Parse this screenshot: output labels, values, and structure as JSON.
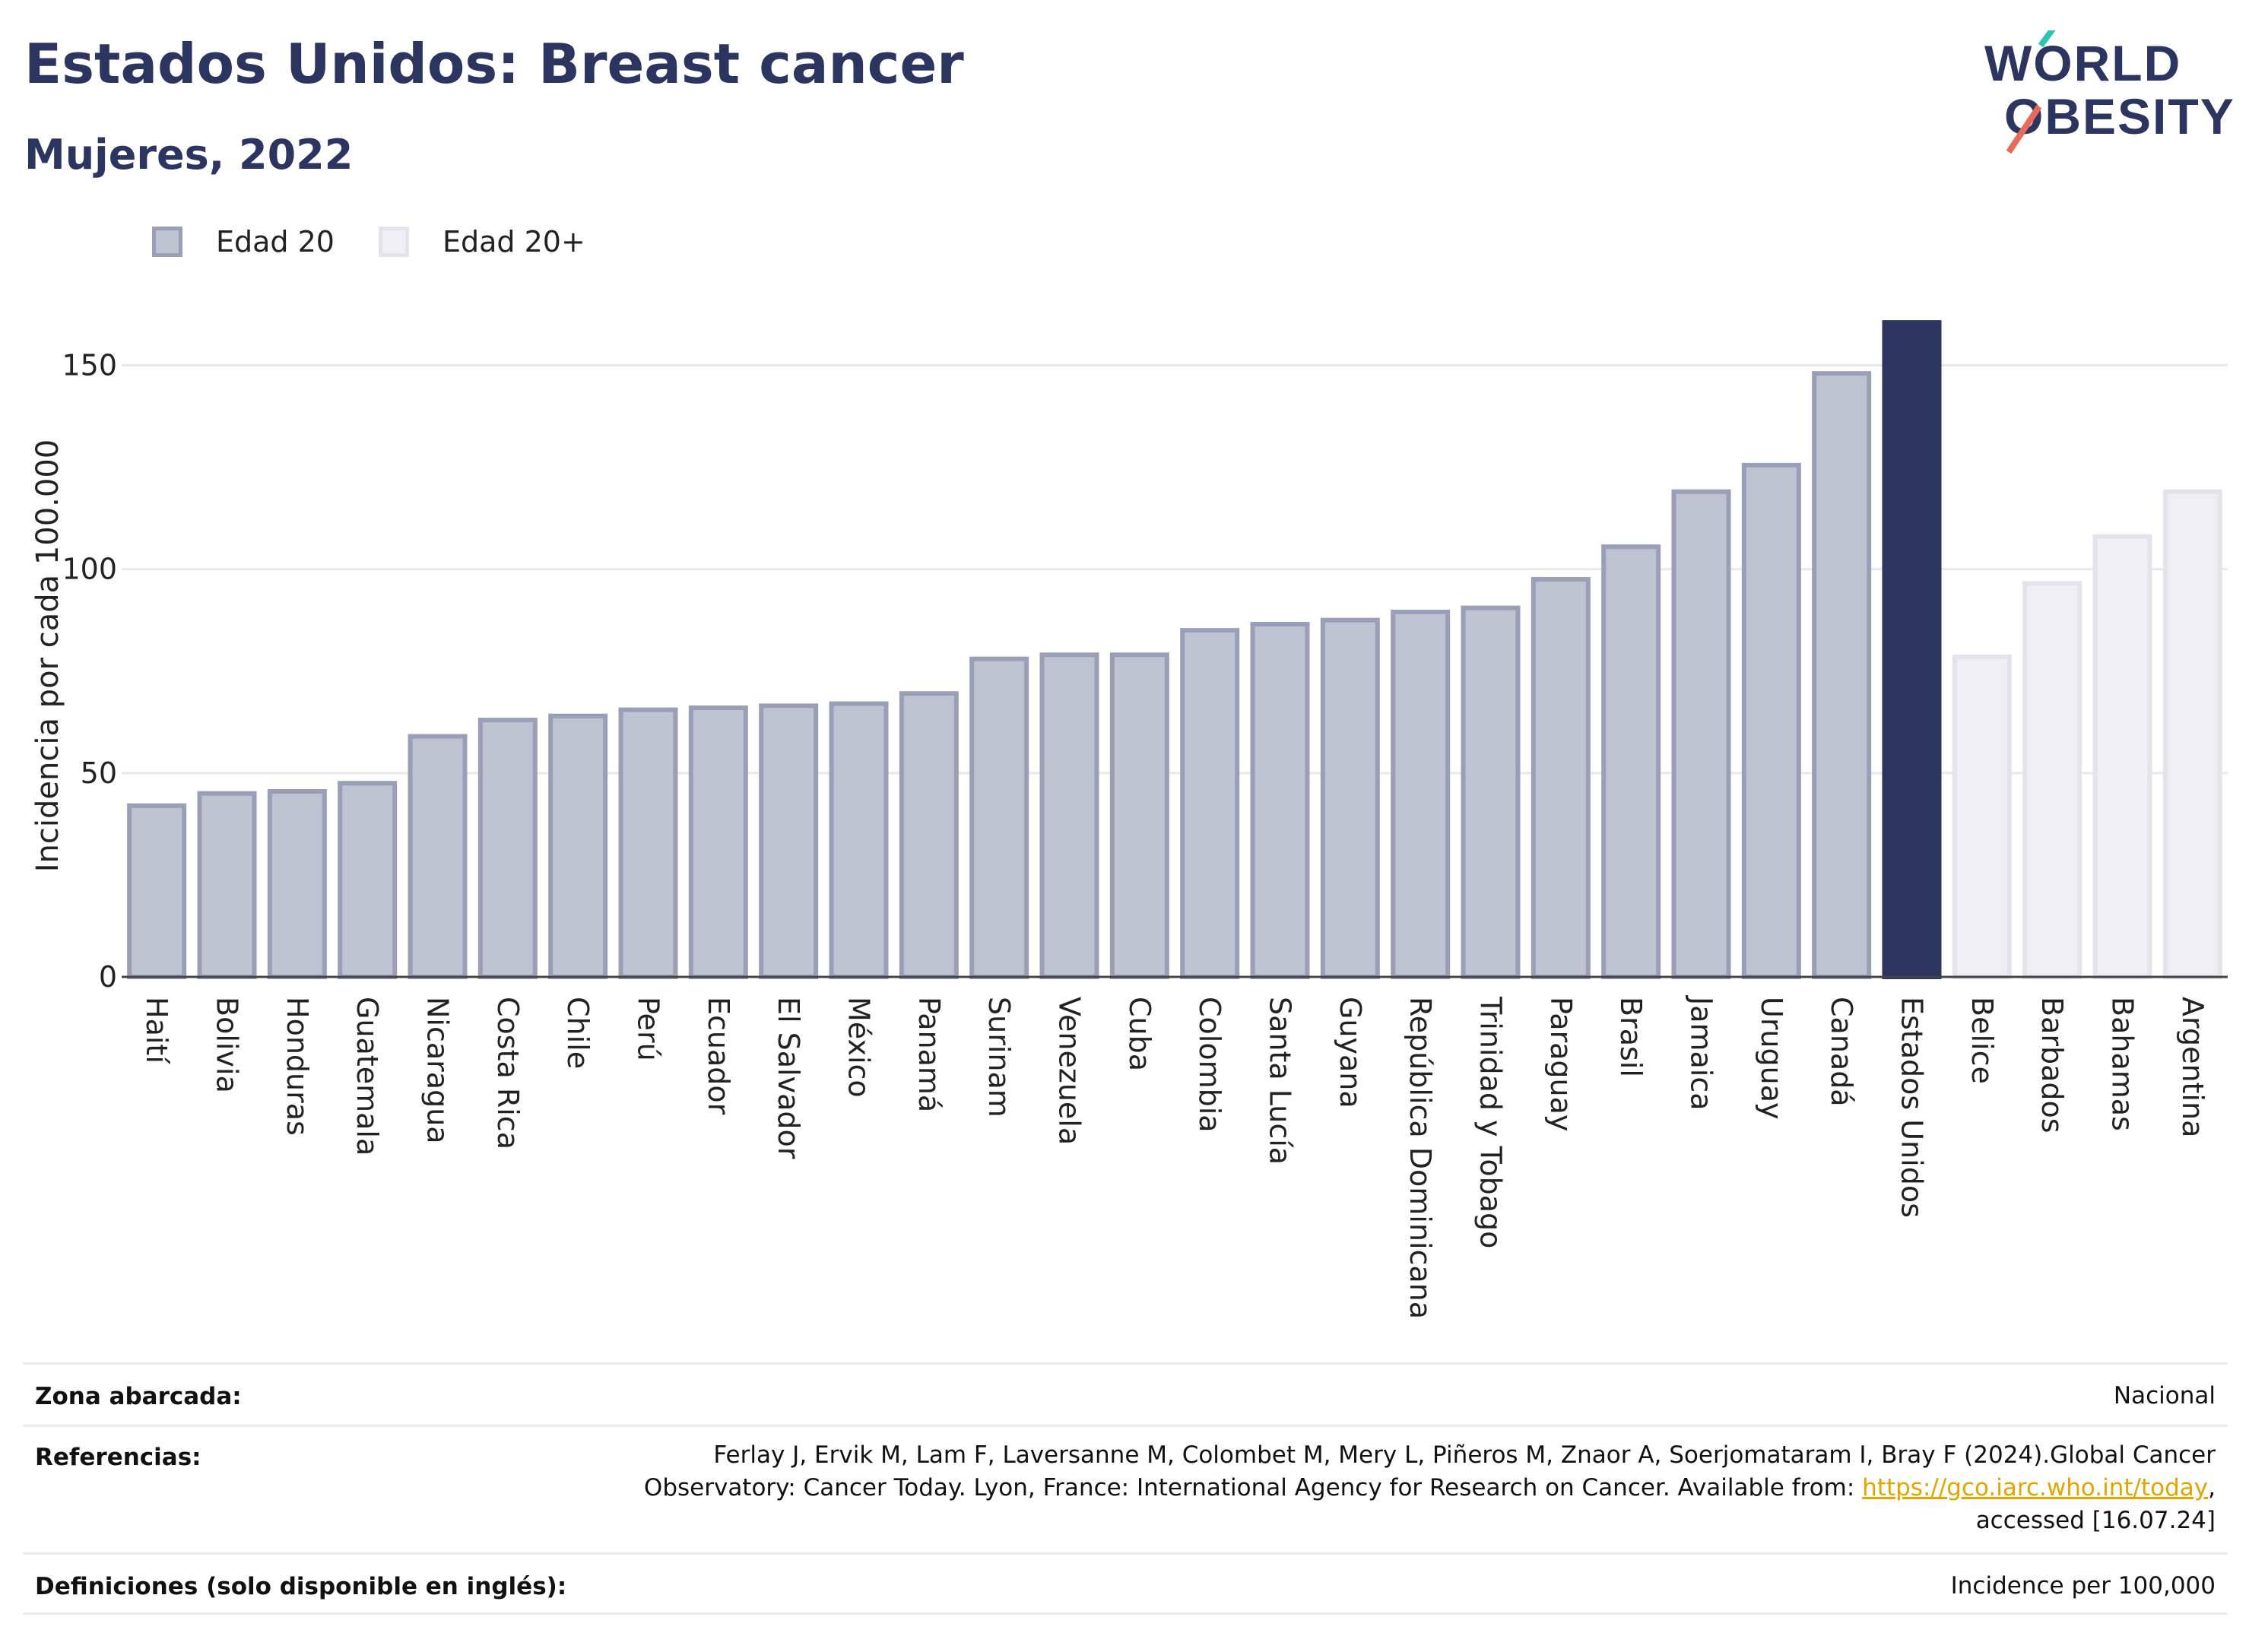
{
  "header": {
    "title": "Estados Unidos: Breast cancer",
    "subtitle": "Mujeres, 2022"
  },
  "logo": {
    "line1": "WORLD",
    "line2": "OBESITY"
  },
  "legend": [
    {
      "label": "Edad 20",
      "color": "#bfc2d1"
    },
    {
      "label": "Edad 20+",
      "color": "#eeeef3"
    }
  ],
  "chart_data": {
    "type": "bar",
    "ylabel": "Incidencia por cada 100.000",
    "ylim": [
      0,
      165
    ],
    "yticks": [
      0,
      50,
      100,
      150
    ],
    "grid": true,
    "legend_position": "top-left",
    "colors": {
      "age20": "#bfc2d1",
      "age20_border": "#9a9fb7",
      "age20plus": "#eeeef3",
      "age20plus_border": "#e3e4eb",
      "highlight": "#2b3560"
    },
    "categories": [
      "Haití",
      "Bolivia",
      "Honduras",
      "Guatemala",
      "Nicaragua",
      "Costa Rica",
      "Chile",
      "Perú",
      "Ecuador",
      "El Salvador",
      "México",
      "Panamá",
      "Surinam",
      "Venezuela",
      "Cuba",
      "Colombia",
      "Santa Lucía",
      "Guyana",
      "República Dominicana",
      "Trinidad y Tobago",
      "Paraguay",
      "Brasil",
      "Jamaica",
      "Uruguay",
      "Canadá",
      "Estados Unidos",
      "Belice",
      "Barbados",
      "Bahamas",
      "Argentina"
    ],
    "values": [
      42,
      45,
      45.5,
      47.5,
      59,
      63,
      64,
      65.5,
      66,
      66.5,
      67,
      69.5,
      78,
      79,
      79,
      85,
      86.5,
      87.5,
      89.5,
      90.5,
      97.5,
      105.5,
      119,
      125.5,
      148,
      160.5,
      78.5,
      96.5,
      108,
      119
    ],
    "groups": [
      "Edad 20",
      "Edad 20",
      "Edad 20",
      "Edad 20",
      "Edad 20",
      "Edad 20",
      "Edad 20",
      "Edad 20",
      "Edad 20",
      "Edad 20",
      "Edad 20",
      "Edad 20",
      "Edad 20",
      "Edad 20",
      "Edad 20",
      "Edad 20",
      "Edad 20",
      "Edad 20",
      "Edad 20",
      "Edad 20",
      "Edad 20",
      "Edad 20",
      "Edad 20",
      "Edad 20",
      "Edad 20",
      "highlight",
      "Edad 20+",
      "Edad 20+",
      "Edad 20+",
      "Edad 20+"
    ]
  },
  "info": {
    "area_label": "Zona abarcada:",
    "area_value": "Nacional",
    "refs_label": "Referencias:",
    "refs_line1": "Ferlay J, Ervik M, Lam F, Laversanne M, Colombet M, Mery L, Piñeros M, Znaor A, Soerjomataram I, Bray F (2024).Global Cancer",
    "refs_line2_pre": "Observatory: Cancer Today. Lyon, France: International Agency for Research on Cancer. Available from: ",
    "refs_link": "https://gco.iarc.who.int/today",
    "refs_line2_post": ",",
    "refs_line3": "accessed [16.07.24]",
    "defs_label": "Definiciones (solo disponible en inglés):",
    "defs_value": "Incidence per 100,000"
  }
}
